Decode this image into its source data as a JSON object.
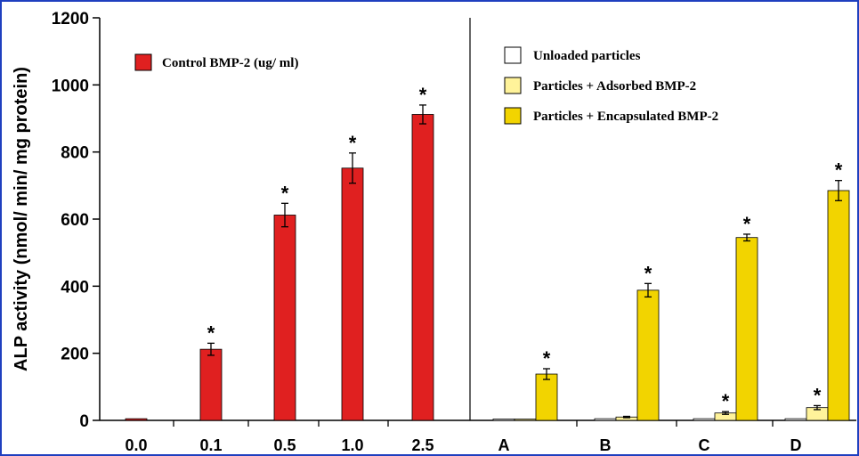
{
  "chart_data": {
    "type": "bar",
    "ylabel": "ALP activity (nmol/ min/ mg protein)",
    "ylim": [
      0,
      1200
    ],
    "yticks": [
      "0",
      "200",
      "400",
      "600",
      "800",
      "1000",
      "1200"
    ],
    "grid": false,
    "panels": [
      {
        "categories": [
          "0.0",
          "0.1",
          "0.5",
          "1.0",
          "2.5"
        ],
        "series": [
          {
            "name": "Control BMP-2 (ug/ ml)",
            "color": "#e02020",
            "values": [
              5,
              212,
              612,
              752,
              912
            ],
            "errors": [
              0,
              18,
              35,
              45,
              28
            ],
            "significant": [
              false,
              true,
              true,
              true,
              true
            ]
          }
        ],
        "legend_position": "top-left"
      },
      {
        "categories": [
          "A",
          "B",
          "C",
          "D"
        ],
        "series": [
          {
            "name": "Unloaded particles",
            "color": "#ffffff",
            "values": [
              4,
              5,
              5,
              5
            ],
            "errors": [
              0,
              0,
              0,
              0
            ],
            "significant": [
              false,
              false,
              false,
              false
            ]
          },
          {
            "name": "Particles + Adsorbed BMP-2",
            "color": "#fff39a",
            "values": [
              4,
              10,
              22,
              38
            ],
            "errors": [
              0,
              2,
              4,
              6
            ],
            "significant": [
              false,
              false,
              true,
              true
            ]
          },
          {
            "name": "Particles + Encapsulated BMP-2",
            "color": "#f2d400",
            "values": [
              138,
              388,
              545,
              685
            ],
            "errors": [
              16,
              20,
              10,
              30
            ],
            "significant": [
              true,
              true,
              true,
              true
            ]
          }
        ],
        "legend_position": "top-right"
      }
    ],
    "significance_marker": "*"
  }
}
